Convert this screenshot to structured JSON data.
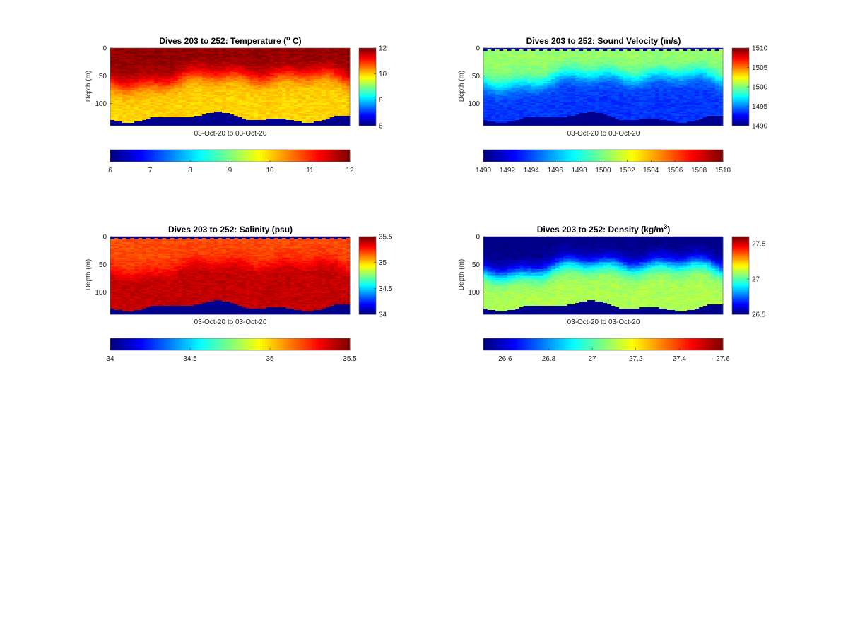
{
  "chart_data": [
    {
      "type": "heatmap",
      "title_main": "Dives 203 to 252: Temperature (",
      "title_sup": "o",
      "title_tail": " C)",
      "xlabel": "03-Oct-20 to 03-Oct-20",
      "ylabel": "Depth (m)",
      "yticks": [
        "0",
        "50",
        "100"
      ],
      "ytick_values": [
        0,
        50,
        100
      ],
      "ylim": [
        0,
        140
      ],
      "colormap": "jet",
      "clim": [
        6,
        12
      ],
      "vertical_colorbar_ticks": [
        "12",
        "10",
        "8",
        "6"
      ],
      "vertical_colorbar_values": [
        12,
        10,
        8,
        6
      ],
      "horizontal_colorbar_ticks": [
        "6",
        "7",
        "8",
        "9",
        "10",
        "11",
        "12"
      ],
      "horizontal_colorbar_values": [
        6,
        7,
        8,
        9,
        10,
        11,
        12
      ],
      "surface_value": 11.9,
      "deep_value": 10.0,
      "profile": "temperature",
      "no_data_color": "#00008f"
    },
    {
      "type": "heatmap",
      "title_main": "Dives 203 to 252: Sound Velocity (m/s)",
      "title_sup": "",
      "title_tail": "",
      "xlabel": "03-Oct-20 to 03-Oct-20",
      "ylabel": "Depth (m)",
      "yticks": [
        "0",
        "50",
        "100"
      ],
      "ytick_values": [
        0,
        50,
        100
      ],
      "ylim": [
        0,
        140
      ],
      "colormap": "jet",
      "clim": [
        1490,
        1510
      ],
      "vertical_colorbar_ticks": [
        "1510",
        "1505",
        "1500",
        "1495",
        "1490"
      ],
      "vertical_colorbar_values": [
        1510,
        1505,
        1500,
        1495,
        1490
      ],
      "horizontal_colorbar_ticks": [
        "1490",
        "1492",
        "1494",
        "1496",
        "1498",
        "1500",
        "1502",
        "1504",
        "1506",
        "1508",
        "1510"
      ],
      "horizontal_colorbar_values": [
        1490,
        1492,
        1494,
        1496,
        1498,
        1500,
        1502,
        1504,
        1506,
        1508,
        1510
      ],
      "surface_value": 1500.5,
      "deep_value": 1493.5,
      "profile": "sound",
      "no_data_color": "#00008f"
    },
    {
      "type": "heatmap",
      "title_main": "Dives 203 to 252: Salinity (psu)",
      "title_sup": "",
      "title_tail": "",
      "xlabel": "03-Oct-20 to 03-Oct-20",
      "ylabel": "Depth (m)",
      "yticks": [
        "0",
        "50",
        "100"
      ],
      "ytick_values": [
        0,
        50,
        100
      ],
      "ylim": [
        0,
        140
      ],
      "colormap": "jet",
      "clim": [
        34,
        35.5
      ],
      "vertical_colorbar_ticks": [
        "35.5",
        "35",
        "34.5",
        "34"
      ],
      "vertical_colorbar_values": [
        35.5,
        35,
        34.5,
        34
      ],
      "horizontal_colorbar_ticks": [
        "34",
        "34.5",
        "35",
        "35.5"
      ],
      "horizontal_colorbar_values": [
        34,
        34.5,
        35,
        35.5
      ],
      "surface_value": 35.2,
      "deep_value": 35.4,
      "profile": "salinity",
      "no_data_color": "#00008f"
    },
    {
      "type": "heatmap",
      "title_main": "Dives 203 to 252: Density (kg/m",
      "title_sup": "3",
      "title_tail": ")",
      "xlabel": "03-Oct-20 to 03-Oct-20",
      "ylabel": "Depth (m)",
      "yticks": [
        "0",
        "50",
        "100"
      ],
      "ytick_values": [
        0,
        50,
        100
      ],
      "ylim": [
        0,
        140
      ],
      "colormap": "jet",
      "clim": [
        26.5,
        27.6
      ],
      "vertical_colorbar_ticks": [
        "27.5",
        "27",
        "26.5"
      ],
      "vertical_colorbar_values": [
        27.5,
        27,
        26.5
      ],
      "horizontal_colorbar_ticks": [
        "26.6",
        "26.8",
        "27",
        "27.2",
        "27.4",
        "27.6"
      ],
      "horizontal_colorbar_values": [
        26.6,
        26.8,
        27,
        27.2,
        27.4,
        27.6
      ],
      "surface_value": 26.5,
      "deep_value": 27.1,
      "profile": "density",
      "no_data_color": "#00008f"
    }
  ]
}
